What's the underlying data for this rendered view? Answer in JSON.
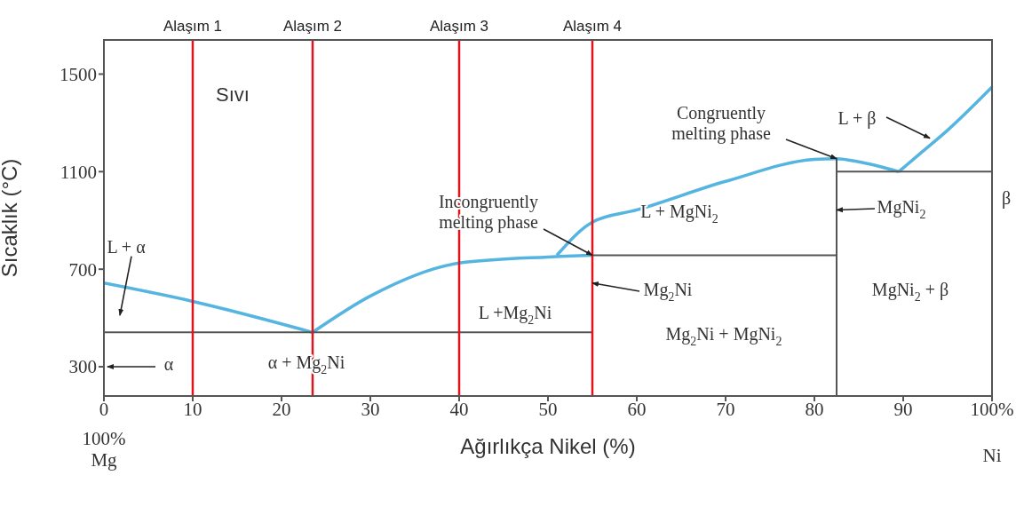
{
  "chart_data": {
    "type": "line",
    "xlabel": "Ağırlıkça Nikel (%)",
    "ylabel": "Sıcaklık (°C)",
    "xlim": [
      0,
      100
    ],
    "xticks": [
      0,
      10,
      20,
      30,
      40,
      50,
      60,
      70,
      80,
      90,
      {
        "value": 100,
        "label": "100%"
      }
    ],
    "ylim": [
      180,
      1640
    ],
    "yticks": [
      300,
      700,
      1100,
      1500
    ],
    "grid": false,
    "marker": "none",
    "line_style": "solid",
    "series": [
      {
        "color": "#55b5e0",
        "x": [
          0,
          10,
          23.5
        ],
        "values": [
          643,
          568,
          441
        ]
      },
      {
        "color": "#55b5e0",
        "x": [
          23.5,
          30,
          40,
          50,
          55
        ],
        "values": [
          441,
          590,
          725,
          750,
          757
        ]
      },
      {
        "color": "#55b5e0",
        "x": [
          51,
          55,
          60,
          70,
          80,
          82.5,
          85,
          89.5
        ],
        "values": [
          757,
          893,
          943,
          1060,
          1150,
          1153,
          1140,
          1100
        ]
      },
      {
        "color": "#55b5e0",
        "x": [
          89.5,
          92,
          95,
          100
        ],
        "values": [
          1100,
          1177,
          1270,
          1447
        ]
      },
      {
        "color": "#555555",
        "x": [
          0,
          55
        ],
        "values": [
          441,
          441
        ]
      },
      {
        "color": "#555555",
        "x": [
          55,
          82.5
        ],
        "values": [
          757,
          757
        ]
      },
      {
        "color": "#555555",
        "x": [
          82.5,
          100
        ],
        "values": [
          1100,
          1100
        ]
      },
      {
        "color": "#555555",
        "x": [
          82.5,
          82.5
        ],
        "values": [
          1153,
          180
        ]
      }
    ],
    "ref_lines": [
      {
        "axis": "x",
        "value": 10,
        "label": "Alaşım 1",
        "color": "#e0141c"
      },
      {
        "axis": "x",
        "value": 23.5,
        "label": "Alaşım 2",
        "color": "#e0141c"
      },
      {
        "axis": "x",
        "value": 40,
        "label": "Alaşım 3",
        "color": "#e0141c"
      },
      {
        "axis": "x",
        "value": 55,
        "label": "Alaşım 4",
        "color": "#e0141c"
      }
    ],
    "annotations": [
      "Sıvı",
      "L + α",
      "α",
      "α + Mg$_{2}$Ni",
      "L +Mg$_{2}$Ni",
      {
        "text": "Incongruently\nmelting phase",
        "x": 55,
        "y": 757
      },
      {
        "text": "Congruently\nmelting phase",
        "x": 82.5,
        "y": 1153
      },
      "L + MgNi$_{2}$",
      {
        "text": "L + β",
        "x": 93,
        "y": 1237
      },
      {
        "text": "MgNi$_{2}$",
        "x": 82.5,
        "y": 943
      },
      "β",
      {
        "text": "Mg$_{2}$Ni",
        "x": 55,
        "y": 643
      },
      "Mg$_{2}$Ni + MgNi$_{2}$",
      "MgNi$_{2}$ + β",
      "100%\nMg",
      "Ni"
    ]
  }
}
